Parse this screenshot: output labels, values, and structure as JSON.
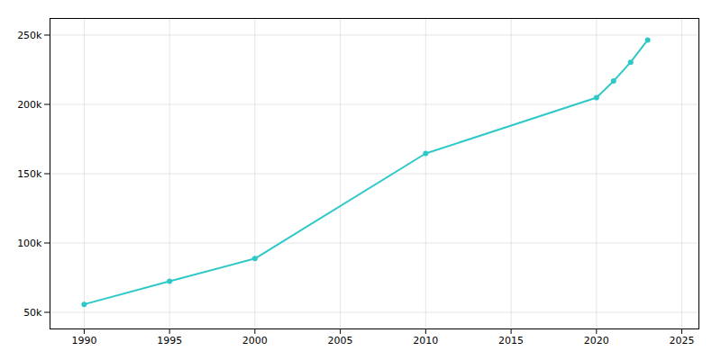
{
  "chart_data": {
    "type": "line",
    "x": [
      1990,
      1995,
      2000,
      2010,
      2020,
      2021,
      2022,
      2023
    ],
    "values": [
      55761,
      72393,
      88769,
      164603,
      204851,
      216812,
      230403,
      246486
    ],
    "color": "#2ec8c8",
    "marker": "circle",
    "xlim": [
      1988.0,
      2026.0
    ],
    "ylim": [
      38000,
      262000
    ],
    "xticks": [
      1990,
      1995,
      2000,
      2005,
      2010,
      2015,
      2020,
      2025
    ],
    "yticks": [
      {
        "value": 50000,
        "label": "50k"
      },
      {
        "value": 100000,
        "label": "100k"
      },
      {
        "value": 150000,
        "label": "150k"
      },
      {
        "value": 200000,
        "label": "200k"
      },
      {
        "value": 250000,
        "label": "250k"
      }
    ],
    "grid": true
  }
}
